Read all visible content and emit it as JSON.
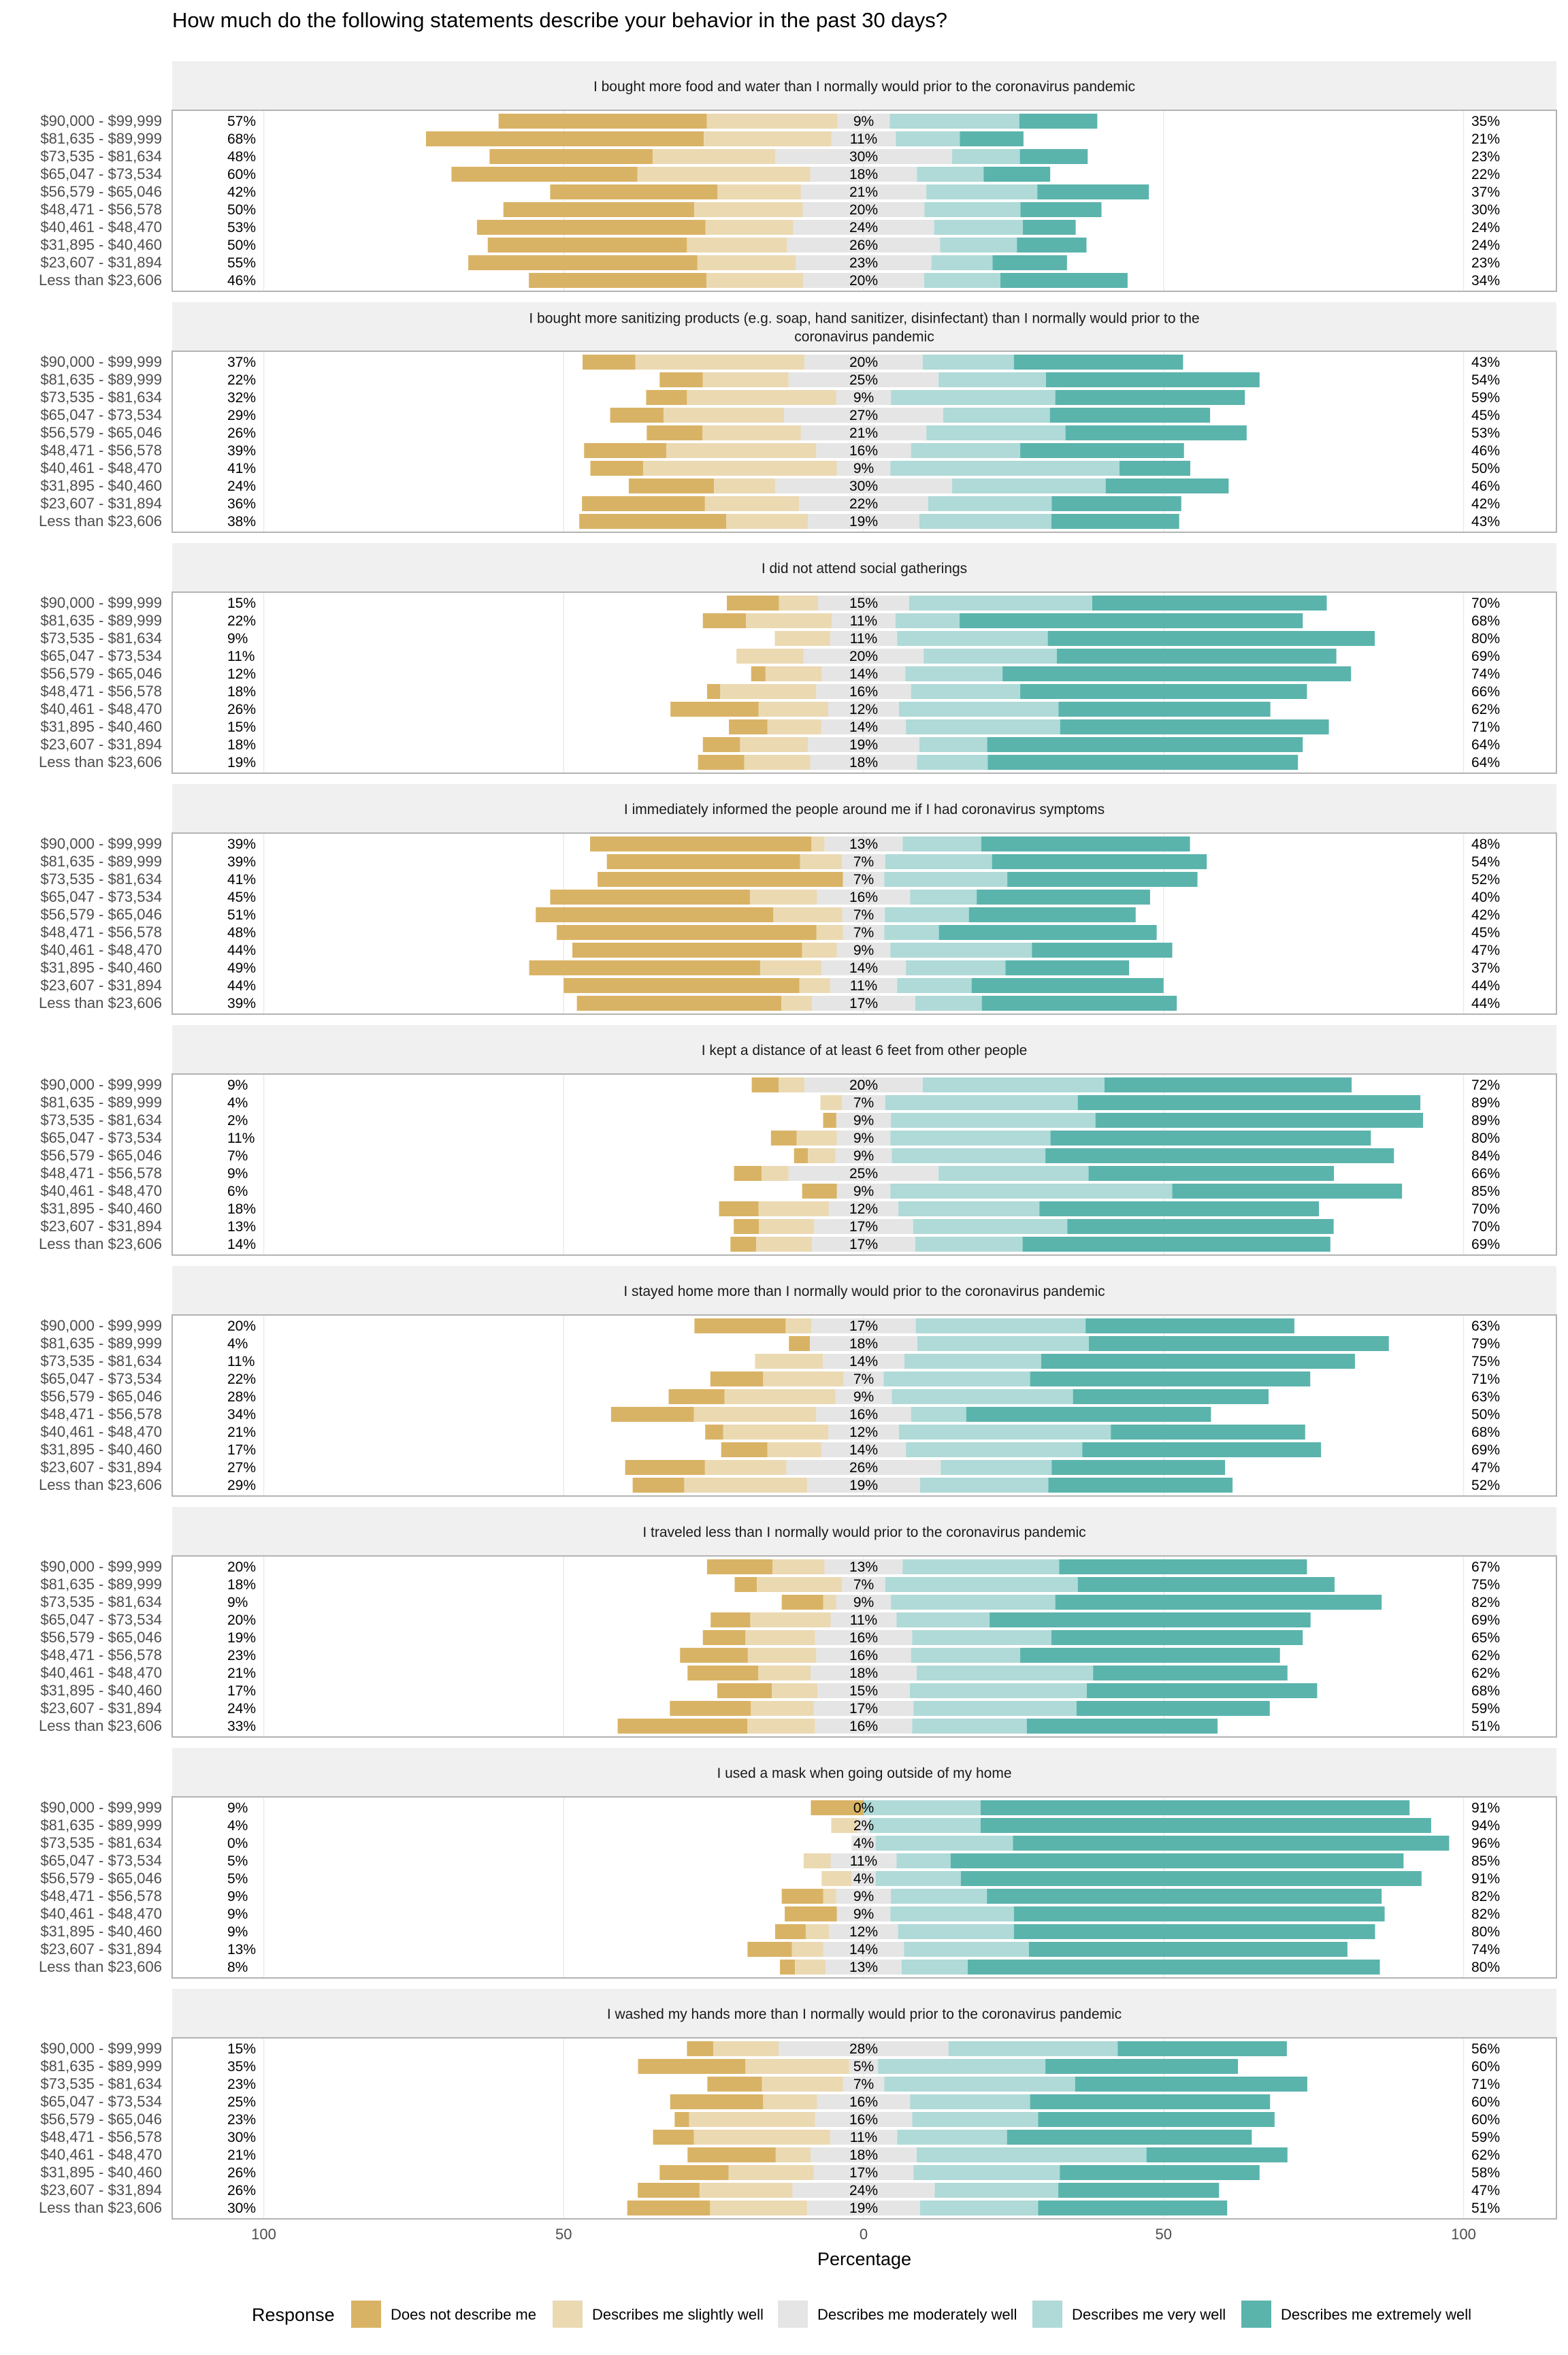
{
  "chart_data": {
    "type": "bar",
    "orientation": "horizontal-diverging-stacked",
    "title": "How much do the following statements describe your behavior in the past 30 days?",
    "xlabel": "Percentage",
    "xlim": [
      -100,
      100
    ],
    "xtick_labels": [
      "100",
      "50",
      "0",
      "50",
      "100"
    ],
    "xtick_values": [
      -100,
      -50,
      0,
      50,
      100
    ],
    "grid": true,
    "legend": {
      "title": "Response",
      "placement": "bottom",
      "entries": [
        "Does not describe me",
        "Describes me slightly well",
        "Describes me moderately well",
        "Describes me very well",
        "Describes me extremely well"
      ],
      "colors": [
        "#D9B365",
        "#EBD9B2",
        "#E5E5E5",
        "#AFDAD7",
        "#5AB4AC"
      ]
    },
    "categories": [
      "$90,000 - $99,999",
      "$81,635 - $89,999",
      "$73,535 - $81,634",
      "$65,047 - $73,534",
      "$56,579 - $65,046",
      "$48,471 - $56,578",
      "$40,461 - $48,470",
      "$31,895 - $40,460",
      "$23,607 - $31,894",
      "Less than $23,606"
    ],
    "panels": [
      {
        "title": [
          "I bought more food and water than I normally would prior to the coronavirus pandemic"
        ],
        "values": [
          [
            34.7,
            21.8,
            8.7,
            21.6,
            13.0
          ],
          [
            46.3,
            21.3,
            10.7,
            10.7,
            10.6
          ],
          [
            27.2,
            20.4,
            29.5,
            11.3,
            11.3
          ],
          [
            31.0,
            28.8,
            17.8,
            11.1,
            11.1
          ],
          [
            27.9,
            13.9,
            20.9,
            18.5,
            18.6
          ],
          [
            31.8,
            18.1,
            20.3,
            16.0,
            13.5
          ],
          [
            38.1,
            14.6,
            23.5,
            14.8,
            8.8
          ],
          [
            33.2,
            16.7,
            25.5,
            12.8,
            11.6
          ],
          [
            38.2,
            16.4,
            22.6,
            10.2,
            12.4
          ],
          [
            29.6,
            16.1,
            20.2,
            12.7,
            21.2
          ]
        ]
      },
      {
        "title": [
          "I bought more sanitizing products (e.g. soap, hand sanitizer, disinfectant) than I normally would prior to the",
          "coronavirus pandemic"
        ],
        "values": [
          [
            8.8,
            28.2,
            19.7,
            15.2,
            28.2
          ],
          [
            7.2,
            14.3,
            25.0,
            17.9,
            35.6
          ],
          [
            6.8,
            24.9,
            9.1,
            27.4,
            31.6
          ],
          [
            8.9,
            20.1,
            26.5,
            17.8,
            26.7
          ],
          [
            9.3,
            16.4,
            20.9,
            23.2,
            30.2
          ],
          [
            13.7,
            25.0,
            15.8,
            18.2,
            27.3
          ],
          [
            8.8,
            32.3,
            8.9,
            38.2,
            11.8
          ],
          [
            14.2,
            10.2,
            29.5,
            25.6,
            20.5
          ],
          [
            20.5,
            15.7,
            21.5,
            20.6,
            21.6
          ],
          [
            24.5,
            13.6,
            18.6,
            22.0,
            21.3
          ]
        ]
      },
      {
        "title": [
          "I did not attend social gatherings"
        ],
        "values": [
          [
            8.7,
            6.5,
            15.2,
            30.5,
            39.1
          ],
          [
            7.2,
            14.3,
            10.6,
            10.7,
            57.2
          ],
          [
            0,
            9.2,
            11.2,
            25.1,
            54.5
          ],
          [
            0,
            11.2,
            20.0,
            22.2,
            46.6
          ],
          [
            2.4,
            9.4,
            13.9,
            16.2,
            58.1
          ],
          [
            2.2,
            16.0,
            15.8,
            18.2,
            47.8
          ],
          [
            14.7,
            11.6,
            11.8,
            26.6,
            35.3
          ],
          [
            6.4,
            9.0,
            14.1,
            25.7,
            44.8
          ],
          [
            6.2,
            11.3,
            18.6,
            11.3,
            52.6
          ],
          [
            7.7,
            11.0,
            17.8,
            11.8,
            51.7
          ]
        ]
      },
      {
        "title": [
          "I immediately informed the people around me if I had coronavirus symptoms"
        ],
        "values": [
          [
            36.9,
            2.2,
            13.0,
            13.1,
            34.8
          ],
          [
            32.2,
            7.0,
            7.2,
            17.8,
            35.8
          ],
          [
            40.9,
            0,
            6.9,
            20.5,
            31.7
          ],
          [
            33.3,
            11.2,
            15.5,
            11.1,
            28.9
          ],
          [
            39.6,
            11.5,
            7.1,
            14.0,
            27.8
          ],
          [
            43.3,
            4.4,
            6.9,
            9.1,
            36.3
          ],
          [
            38.3,
            5.8,
            8.9,
            23.6,
            23.4
          ],
          [
            38.5,
            10.2,
            14.1,
            16.6,
            20.6
          ],
          [
            39.3,
            5.1,
            11.2,
            12.4,
            32.0
          ],
          [
            34.1,
            5.1,
            17.2,
            11.1,
            32.5
          ]
        ]
      },
      {
        "title": [
          "I kept a distance of at least 6 feet from other people"
        ],
        "values": [
          [
            4.5,
            4.3,
            19.7,
            30.3,
            41.2
          ],
          [
            0,
            3.6,
            7.2,
            32.1,
            57.1
          ],
          [
            2.2,
            0,
            9.1,
            34.1,
            54.6
          ],
          [
            4.3,
            6.7,
            8.9,
            26.7,
            53.4
          ],
          [
            2.3,
            4.6,
            9.4,
            25.6,
            58.1
          ],
          [
            4.6,
            4.5,
            25.0,
            25.0,
            40.9
          ],
          [
            5.8,
            0,
            8.9,
            47.0,
            38.3
          ],
          [
            6.6,
            11.7,
            11.6,
            23.5,
            46.6
          ],
          [
            4.2,
            9.2,
            16.5,
            25.7,
            44.4
          ],
          [
            4.3,
            9.3,
            17.2,
            17.9,
            51.3
          ]
        ]
      },
      {
        "title": [
          "I stayed home more than I normally would prior to the coronavirus pandemic"
        ],
        "values": [
          [
            15.2,
            4.3,
            17.4,
            28.3,
            34.8
          ],
          [
            3.5,
            0,
            17.9,
            28.6,
            50.0
          ],
          [
            0,
            11.3,
            13.6,
            22.8,
            52.3
          ],
          [
            8.8,
            13.4,
            6.7,
            24.4,
            46.7
          ],
          [
            9.3,
            18.5,
            9.4,
            30.2,
            32.6
          ],
          [
            13.8,
            20.4,
            15.8,
            9.2,
            40.8
          ],
          [
            3.0,
            17.5,
            11.8,
            35.3,
            32.4
          ],
          [
            7.7,
            9.0,
            14.1,
            29.4,
            39.8
          ],
          [
            13.3,
            13.6,
            25.7,
            18.5,
            28.9
          ],
          [
            8.6,
            20.5,
            18.8,
            21.4,
            30.7
          ]
        ]
      },
      {
        "title": [
          "I traveled less than I normally would prior to the coronavirus pandemic"
        ],
        "values": [
          [
            10.9,
            8.7,
            13.0,
            26.1,
            41.3
          ],
          [
            3.7,
            14.2,
            7.2,
            32.1,
            42.8
          ],
          [
            6.9,
            2.2,
            9.1,
            27.4,
            54.4
          ],
          [
            6.6,
            13.4,
            11.0,
            15.5,
            53.5
          ],
          [
            7.1,
            11.6,
            16.2,
            23.2,
            41.9
          ],
          [
            11.3,
            11.4,
            15.8,
            18.2,
            43.3
          ],
          [
            11.8,
            8.7,
            17.7,
            29.4,
            32.4
          ],
          [
            9.1,
            7.6,
            15.4,
            29.5,
            38.4
          ],
          [
            13.5,
            10.5,
            16.6,
            27.2,
            32.2
          ],
          [
            21.6,
            11.3,
            16.2,
            19.1,
            31.8
          ]
        ]
      },
      {
        "title": [
          "I used a mask when going outside of my home"
        ],
        "values": [
          [
            8.8,
            0,
            0,
            19.5,
            71.5
          ],
          [
            0,
            4.4,
            2.0,
            18.5,
            75.1
          ],
          [
            0,
            0,
            4.0,
            22.9,
            72.7
          ],
          [
            0,
            4.5,
            11.0,
            9.0,
            75.5
          ],
          [
            0,
            5.0,
            4.0,
            14.2,
            76.8
          ],
          [
            6.9,
            2.2,
            9.1,
            16.0,
            65.8
          ],
          [
            8.7,
            0,
            8.9,
            20.6,
            61.8
          ],
          [
            5.1,
            3.9,
            11.5,
            19.3,
            60.2
          ],
          [
            7.4,
            5.2,
            13.5,
            20.8,
            53.1
          ],
          [
            2.5,
            5.1,
            12.7,
            11.0,
            68.7
          ]
        ]
      },
      {
        "title": [
          "I washed my hands more than I normally would prior to the coronavirus pandemic"
        ],
        "values": [
          [
            4.4,
            10.9,
            28.3,
            28.2,
            28.2
          ],
          [
            17.9,
            17.3,
            4.8,
            27.9,
            32.1
          ],
          [
            9.1,
            13.5,
            6.9,
            31.8,
            38.7
          ],
          [
            15.5,
            9.0,
            15.5,
            20.0,
            40.0
          ],
          [
            2.4,
            21.0,
            16.2,
            21.0,
            39.4
          ],
          [
            6.8,
            22.7,
            11.2,
            18.3,
            40.8
          ],
          [
            14.7,
            5.8,
            17.7,
            38.3,
            23.5
          ],
          [
            11.5,
            14.2,
            16.6,
            24.4,
            33.3
          ],
          [
            10.3,
            15.5,
            23.7,
            20.6,
            26.8
          ],
          [
            13.8,
            16.2,
            18.8,
            19.7,
            31.5
          ]
        ]
      }
    ]
  }
}
